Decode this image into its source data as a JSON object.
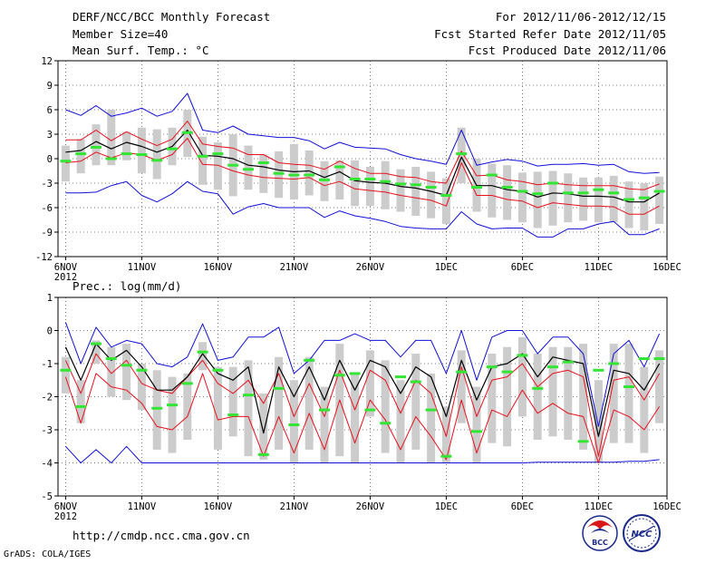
{
  "header": {
    "title": "DERF/NCC/BCC Monthly Forecast",
    "member_size": "Member Size=40",
    "variable": "Mean Surf. Temp.: °C",
    "period": "For 2012/11/06-2012/12/15",
    "started": "Fcst Started Refer Date 2012/11/05",
    "produced": "Fcst Produced Date 2012/11/06"
  },
  "footer": {
    "url": "http://cmdp.ncc.cma.gov.cn",
    "credit": "GrADS: COLA/IGES",
    "bcc_logo_text": "BCC",
    "ncc_logo_text": "NCC"
  },
  "colors": {
    "bar": "#cccccc",
    "mean": "#000000",
    "sd": "#e8101c",
    "range": "#1010d8",
    "median": "#33e633",
    "grid": "#555555"
  },
  "chart_data": [
    {
      "id": "temperature",
      "type": "line",
      "title": "Mean Surf. Temp.: °C",
      "ylim": [
        -12,
        12
      ],
      "yticks": [
        "12",
        "9",
        "6",
        "3",
        "0",
        "-3",
        "-6",
        "-9",
        "-12"
      ],
      "xlim": [
        0,
        40
      ],
      "xticks": [
        {
          "at": 0.5,
          "label": "6NOV",
          "sub": "2012"
        },
        {
          "at": 5.5,
          "label": "11NOV"
        },
        {
          "at": 10.5,
          "label": "16NOV"
        },
        {
          "at": 15.5,
          "label": "21NOV"
        },
        {
          "at": 20.5,
          "label": "26NOV"
        },
        {
          "at": 25.5,
          "label": "1DEC"
        },
        {
          "at": 30.5,
          "label": "6DEC"
        },
        {
          "at": 35.5,
          "label": "11DEC"
        },
        {
          "at": 40,
          "label": "16DEC"
        }
      ],
      "x": [
        0.5,
        1.5,
        2.5,
        3.5,
        4.5,
        5.5,
        6.5,
        7.5,
        8.5,
        9.5,
        10.5,
        11.5,
        12.5,
        13.5,
        14.5,
        15.5,
        16.5,
        17.5,
        18.5,
        19.5,
        20.5,
        21.5,
        22.5,
        23.5,
        24.5,
        25.5,
        26.5,
        27.5,
        28.5,
        29.5,
        30.5,
        31.5,
        32.5,
        33.5,
        34.5,
        35.5,
        36.5,
        37.5,
        38.5,
        39.5
      ],
      "series": [
        {
          "name": "max",
          "color_key": "range",
          "values": [
            6.0,
            5.3,
            6.5,
            5.2,
            5.6,
            6.2,
            5.2,
            5.8,
            8.0,
            3.5,
            3.2,
            4.0,
            3.0,
            2.8,
            2.6,
            2.6,
            2.2,
            1.2,
            2.0,
            1.4,
            1.3,
            1.2,
            0.5,
            0.0,
            -0.3,
            -0.7,
            3.5,
            -0.8,
            -0.4,
            -0.1,
            -0.3,
            -0.9,
            -0.7,
            -0.7,
            -0.6,
            -0.8,
            -0.7,
            -1.6,
            -1.8,
            -1.7
          ]
        },
        {
          "name": "mean+sd",
          "color_key": "sd",
          "values": [
            2.3,
            2.3,
            3.5,
            2.2,
            3.3,
            2.4,
            1.6,
            2.4,
            4.6,
            1.8,
            1.5,
            1.3,
            0.5,
            0.5,
            -0.5,
            -0.7,
            -0.8,
            -1.3,
            -0.3,
            -1.2,
            -1.8,
            -1.8,
            -2.2,
            -2.3,
            -2.8,
            -3.0,
            0.9,
            -2.1,
            -2.0,
            -2.6,
            -2.8,
            -3.2,
            -3.0,
            -3.2,
            -3.3,
            -3.3,
            -3.3,
            -3.7,
            -3.8,
            -3.1
          ]
        },
        {
          "name": "mean",
          "color_key": "mean",
          "values": [
            0.8,
            1.0,
            2.1,
            1.2,
            2.0,
            1.5,
            0.8,
            1.5,
            3.5,
            0.4,
            0.3,
            0.0,
            -0.8,
            -1.0,
            -1.4,
            -1.6,
            -1.5,
            -2.3,
            -1.6,
            -2.7,
            -2.9,
            -3.0,
            -3.4,
            -3.6,
            -4.0,
            -4.5,
            0.2,
            -3.3,
            -3.3,
            -3.8,
            -4.0,
            -4.7,
            -4.2,
            -4.3,
            -4.6,
            -4.6,
            -4.7,
            -5.3,
            -5.3,
            -4.2
          ]
        },
        {
          "name": "mean-sd",
          "color_key": "sd",
          "values": [
            -0.5,
            -0.3,
            0.8,
            0.1,
            0.7,
            0.5,
            -0.2,
            0.5,
            2.5,
            -0.7,
            -0.8,
            -1.5,
            -2.0,
            -2.3,
            -2.4,
            -2.5,
            -2.3,
            -3.3,
            -2.8,
            -3.7,
            -3.9,
            -4.1,
            -4.5,
            -4.8,
            -5.1,
            -5.8,
            -0.5,
            -4.5,
            -4.5,
            -5.0,
            -5.2,
            -6.0,
            -5.4,
            -5.6,
            -5.8,
            -5.8,
            -5.9,
            -6.8,
            -6.8,
            -5.8
          ]
        },
        {
          "name": "min",
          "color_key": "range",
          "values": [
            -4.2,
            -4.2,
            -4.1,
            -3.3,
            -2.8,
            -4.5,
            -5.3,
            -4.3,
            -2.8,
            -4.0,
            -4.3,
            -6.8,
            -5.9,
            -5.5,
            -6.0,
            -6.0,
            -6.0,
            -7.2,
            -6.4,
            -7.0,
            -7.3,
            -7.7,
            -8.3,
            -8.5,
            -8.6,
            -8.6,
            -6.5,
            -8.0,
            -8.6,
            -8.5,
            -8.5,
            -9.6,
            -9.6,
            -8.6,
            -8.6,
            -8.0,
            -7.7,
            -9.3,
            -9.3,
            -8.6
          ]
        },
        {
          "name": "median",
          "color_key": "median",
          "values": [
            -0.3,
            0.6,
            1.4,
            0.0,
            0.6,
            0.5,
            -0.2,
            1.2,
            3.2,
            0.3,
            0.6,
            -0.8,
            -1.3,
            -0.5,
            -1.8,
            -2.0,
            -2.0,
            -2.6,
            -1.0,
            -2.5,
            -2.5,
            -2.8,
            -3.1,
            -3.2,
            -3.5,
            -4.5,
            0.6,
            -3.5,
            -2.0,
            -3.5,
            -4.0,
            -4.3,
            -3.0,
            -4.2,
            -4.2,
            -3.8,
            -4.2,
            -5.0,
            -4.8,
            -4.0
          ]
        },
        {
          "name": "p25-p75 lower",
          "color_key": "bar",
          "values": [
            -2.8,
            -1.8,
            -0.8,
            -0.8,
            -0.2,
            -1.8,
            -2.5,
            -0.8,
            0.2,
            -3.2,
            -3.8,
            -4.6,
            -3.8,
            -4.2,
            -4.8,
            -5.0,
            -4.5,
            -5.2,
            -5.0,
            -5.8,
            -5.8,
            -6.2,
            -6.5,
            -7.0,
            -7.3,
            -8.0,
            -3.0,
            -6.5,
            -7.2,
            -7.5,
            -7.8,
            -8.5,
            -8.2,
            -7.8,
            -7.6,
            -7.8,
            -7.8,
            -8.5,
            -8.8,
            -8.0
          ]
        },
        {
          "name": "p25-p75 upper",
          "color_key": "bar",
          "values": [
            1.6,
            2.4,
            4.2,
            6.0,
            3.3,
            3.8,
            3.6,
            3.8,
            6.0,
            2.7,
            2.0,
            3.0,
            1.6,
            0.5,
            0.9,
            1.8,
            1.0,
            -0.3,
            -0.2,
            -0.2,
            -1.0,
            -0.3,
            -1.3,
            -1.0,
            -1.6,
            -2.4,
            3.8,
            0.0,
            -0.6,
            -0.8,
            -1.7,
            -1.6,
            -1.5,
            -1.8,
            -2.3,
            -2.3,
            -2.1,
            -2.8,
            -3.0,
            -2.2
          ]
        }
      ]
    },
    {
      "id": "precipitation",
      "type": "line",
      "title": "Prec.: log(mm/d)",
      "ylim": [
        -5,
        1
      ],
      "yticks": [
        "1",
        "0",
        "-1",
        "-2",
        "-3",
        "-4",
        "-5"
      ],
      "xlim": [
        0,
        40
      ],
      "xticks": [
        {
          "at": 0.5,
          "label": "6NOV",
          "sub": "2012"
        },
        {
          "at": 5.5,
          "label": "11NOV"
        },
        {
          "at": 10.5,
          "label": "16NOV"
        },
        {
          "at": 15.5,
          "label": "21NOV"
        },
        {
          "at": 20.5,
          "label": "26NOV"
        },
        {
          "at": 25.5,
          "label": "1DEC"
        },
        {
          "at": 30.5,
          "label": "6DEC"
        },
        {
          "at": 35.5,
          "label": "11DEC"
        },
        {
          "at": 40,
          "label": "16DEC"
        }
      ],
      "x": [
        0.5,
        1.5,
        2.5,
        3.5,
        4.5,
        5.5,
        6.5,
        7.5,
        8.5,
        9.5,
        10.5,
        11.5,
        12.5,
        13.5,
        14.5,
        15.5,
        16.5,
        17.5,
        18.5,
        19.5,
        20.5,
        21.5,
        22.5,
        23.5,
        24.5,
        25.5,
        26.5,
        27.5,
        28.5,
        29.5,
        30.5,
        31.5,
        32.5,
        33.5,
        34.5,
        35.5,
        36.5,
        37.5,
        38.5,
        39.5
      ],
      "series": [
        {
          "name": "max",
          "color_key": "range",
          "values": [
            0.25,
            -1.0,
            0.1,
            -0.5,
            -0.3,
            -0.4,
            -1.0,
            -1.1,
            -0.8,
            0.2,
            -0.9,
            -0.8,
            -0.2,
            -0.2,
            0.1,
            -1.3,
            -0.9,
            -0.3,
            -0.3,
            -0.1,
            -0.3,
            -0.3,
            -0.8,
            -0.3,
            -0.3,
            -1.3,
            0.0,
            -1.5,
            -0.2,
            0.0,
            0.0,
            -0.7,
            -0.2,
            -0.2,
            -0.7,
            -2.9,
            -0.7,
            -0.3,
            -1.1,
            -0.1
          ]
        },
        {
          "name": "mean+sd",
          "color_key": "sd",
          "values": [
            -0.9,
            -1.9,
            -0.7,
            -1.3,
            -0.9,
            -1.6,
            -1.8,
            -1.9,
            -1.4,
            -0.9,
            -1.6,
            -1.9,
            -1.5,
            -2.2,
            -1.3,
            -2.6,
            -1.6,
            -2.6,
            -1.2,
            -2.4,
            -1.2,
            -1.5,
            -2.5,
            -1.5,
            -1.9,
            -3.2,
            -1.1,
            -2.6,
            -1.5,
            -1.4,
            -1.0,
            -1.7,
            -1.3,
            -1.2,
            -1.4,
            -3.8,
            -1.5,
            -1.4,
            -2.1,
            -1.3
          ]
        },
        {
          "name": "mean",
          "color_key": "mean",
          "values": [
            -0.5,
            -1.5,
            -0.4,
            -0.9,
            -0.6,
            -1.1,
            -1.8,
            -1.8,
            -1.4,
            -0.7,
            -1.3,
            -1.5,
            -1.1,
            -3.1,
            -1.1,
            -2.0,
            -1.1,
            -2.1,
            -0.9,
            -1.8,
            -0.9,
            -1.1,
            -1.9,
            -1.1,
            -1.4,
            -2.6,
            -0.9,
            -2.1,
            -1.1,
            -1.0,
            -0.7,
            -1.4,
            -0.8,
            -0.9,
            -1.0,
            -3.2,
            -1.2,
            -1.3,
            -1.8,
            -1.0
          ]
        },
        {
          "name": "mean-sd",
          "color_key": "sd",
          "values": [
            -1.4,
            -2.8,
            -1.3,
            -1.7,
            -1.8,
            -2.2,
            -2.9,
            -3.0,
            -2.6,
            -1.3,
            -2.7,
            -2.6,
            -2.6,
            -3.8,
            -2.6,
            -3.7,
            -2.5,
            -3.6,
            -2.1,
            -3.4,
            -2.1,
            -2.7,
            -3.6,
            -2.6,
            -3.2,
            -3.9,
            -2.1,
            -3.7,
            -2.4,
            -2.6,
            -1.8,
            -2.5,
            -2.2,
            -2.5,
            -2.6,
            -4.0,
            -2.4,
            -2.6,
            -3.0,
            -2.3
          ]
        },
        {
          "name": "min",
          "color_key": "range",
          "values": [
            -3.5,
            -4.0,
            -3.6,
            -4.0,
            -3.5,
            -4.0,
            -4.0,
            -4.0,
            -4.0,
            -4.0,
            -4.0,
            -4.0,
            -4.0,
            -4.0,
            -4.0,
            -4.0,
            -4.0,
            -4.0,
            -4.0,
            -4.0,
            -4.0,
            -4.0,
            -4.0,
            -4.0,
            -4.0,
            -4.0,
            -4.0,
            -4.0,
            -4.0,
            -4.0,
            -4.0,
            -3.98,
            -3.98,
            -3.98,
            -3.98,
            -3.98,
            -3.98,
            -3.95,
            -3.95,
            -3.9
          ]
        },
        {
          "name": "median",
          "color_key": "median",
          "values": [
            -1.2,
            -2.3,
            -0.4,
            -0.85,
            -1.05,
            -1.2,
            -2.35,
            -2.25,
            -1.6,
            -0.65,
            -1.2,
            -2.55,
            -1.95,
            -3.75,
            -1.75,
            -2.85,
            -0.9,
            -2.4,
            -1.35,
            -1.3,
            -2.4,
            -2.8,
            -1.4,
            -1.55,
            -2.4,
            -3.8,
            -1.25,
            -3.05,
            -1.1,
            -1.25,
            -0.75,
            -1.75,
            -1.1,
            -0.95,
            -3.35,
            -1.2,
            -1.0,
            -1.7,
            -0.85,
            -0.85
          ]
        },
        {
          "name": "p25-p75 lower",
          "color_key": "bar",
          "values": [
            -1.9,
            -2.8,
            -1.0,
            -2.0,
            -2.1,
            -2.4,
            -3.6,
            -3.7,
            -3.3,
            -1.2,
            -3.6,
            -3.2,
            -3.8,
            -3.9,
            -3.6,
            -4.0,
            -3.6,
            -4.0,
            -3.8,
            -4.0,
            -2.6,
            -3.7,
            -4.0,
            -3.6,
            -4.0,
            -4.0,
            -2.8,
            -4.0,
            -3.4,
            -3.5,
            -2.6,
            -3.3,
            -3.2,
            -3.3,
            -3.6,
            -4.0,
            -3.4,
            -3.4,
            -3.7,
            -2.8
          ]
        },
        {
          "name": "p25-p75 upper",
          "color_key": "bar",
          "values": [
            -0.8,
            -1.5,
            -0.3,
            -0.5,
            -0.4,
            -1.0,
            -1.2,
            -1.4,
            -1.3,
            -0.35,
            -1.1,
            -1.1,
            -0.9,
            -1.9,
            -0.8,
            -1.5,
            -0.8,
            -1.7,
            -0.4,
            -1.3,
            -0.6,
            -0.9,
            -1.5,
            -0.7,
            -1.3,
            -2.3,
            -0.6,
            -1.7,
            -0.7,
            -0.5,
            -0.2,
            -0.7,
            -0.5,
            -0.5,
            -0.4,
            -1.5,
            -0.4,
            -0.4,
            -1.1,
            -0.6
          ]
        }
      ]
    }
  ]
}
